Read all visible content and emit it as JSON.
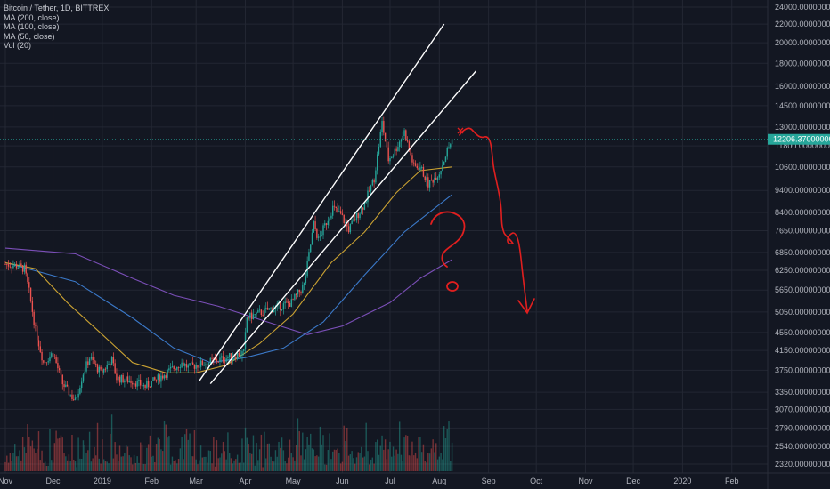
{
  "legend": {
    "symbol": "Bitcoin / Tether, 1D, BITTREX",
    "ma200": "MA (200, close)",
    "ma100": "MA (100, close)",
    "ma50": "MA (50, close)",
    "vol": "Vol (20)"
  },
  "current_price": "12206.37000000",
  "colors": {
    "background": "#131722",
    "up": "#26a69a",
    "down": "#ef5350",
    "ma200": "#7b4fb8",
    "ma100": "#3b79c9",
    "ma50": "#c9a132",
    "trendline": "#ffffff",
    "annotation": "#e01f1f",
    "grid": "#232733"
  },
  "chart_data": {
    "type": "candlestick",
    "y_axis": {
      "scale": "log",
      "ticks": [
        "24000.00000000",
        "22000.00000000",
        "20000.00000000",
        "18000.00000000",
        "16000.00000000",
        "14500.00000000",
        "13000.00000000",
        "11800.00000000",
        "10600.00000000",
        "9400.00000000",
        "8400.00000000",
        "7650.00000000",
        "6850.00000000",
        "6250.00000000",
        "5650.00000000",
        "5050.00000000",
        "4550.00000000",
        "4150.00000000",
        "3750.00000000",
        "3350.00000000",
        "3070.00000000",
        "2790.00000000",
        "2540.00000000",
        "2320.00000000"
      ]
    },
    "x_axis": {
      "ticks": [
        "Nov",
        "Dec",
        "2019",
        "Feb",
        "Mar",
        "Apr",
        "May",
        "Jun",
        "Jul",
        "Aug",
        "Sep",
        "Oct",
        "Nov",
        "Dec",
        "2020",
        "Feb"
      ]
    },
    "price_path": [
      [
        "2018-11-01",
        6450
      ],
      [
        "2018-11-08",
        6400
      ],
      [
        "2018-11-13",
        6300
      ],
      [
        "2018-11-16",
        5600
      ],
      [
        "2018-11-20",
        4600
      ],
      [
        "2018-11-25",
        3900
      ],
      [
        "2018-12-01",
        4100
      ],
      [
        "2018-12-07",
        3500
      ],
      [
        "2018-12-15",
        3200
      ],
      [
        "2018-12-20",
        3700
      ],
      [
        "2018-12-24",
        4000
      ],
      [
        "2018-12-31",
        3700
      ],
      [
        "2019-01-07",
        3950
      ],
      [
        "2019-01-10",
        3600
      ],
      [
        "2019-01-20",
        3550
      ],
      [
        "2019-01-28",
        3450
      ],
      [
        "2019-02-08",
        3650
      ],
      [
        "2019-02-20",
        3900
      ],
      [
        "2019-02-24",
        3800
      ],
      [
        "2019-03-01",
        3850
      ],
      [
        "2019-03-15",
        3950
      ],
      [
        "2019-03-31",
        4100
      ],
      [
        "2019-04-02",
        4900
      ],
      [
        "2019-04-15",
        5100
      ],
      [
        "2019-04-30",
        5300
      ],
      [
        "2019-05-08",
        5800
      ],
      [
        "2019-05-14",
        7900
      ],
      [
        "2019-05-17",
        7300
      ],
      [
        "2019-05-26",
        8600
      ],
      [
        "2019-05-31",
        8300
      ],
      [
        "2019-06-05",
        7700
      ],
      [
        "2019-06-15",
        8800
      ],
      [
        "2019-06-21",
        10000
      ],
      [
        "2019-06-26",
        13300
      ],
      [
        "2019-06-30",
        11000
      ],
      [
        "2019-07-04",
        11500
      ],
      [
        "2019-07-10",
        12700
      ],
      [
        "2019-07-16",
        10600
      ],
      [
        "2019-07-20",
        10600
      ],
      [
        "2019-07-25",
        9700
      ],
      [
        "2019-08-01",
        10300
      ],
      [
        "2019-08-06",
        11500
      ],
      [
        "2019-08-09",
        12200
      ]
    ],
    "ma50": [
      [
        "2018-11-01",
        6500
      ],
      [
        "2018-11-20",
        6300
      ],
      [
        "2018-12-10",
        5300
      ],
      [
        "2019-01-01",
        4500
      ],
      [
        "2019-01-20",
        3900
      ],
      [
        "2019-02-10",
        3700
      ],
      [
        "2019-03-01",
        3700
      ],
      [
        "2019-03-20",
        3850
      ],
      [
        "2019-04-10",
        4300
      ],
      [
        "2019-05-01",
        5000
      ],
      [
        "2019-05-25",
        6500
      ],
      [
        "2019-06-15",
        7600
      ],
      [
        "2019-07-05",
        9300
      ],
      [
        "2019-07-20",
        10400
      ],
      [
        "2019-08-09",
        10600
      ]
    ],
    "ma100": [
      [
        "2018-11-01",
        6500
      ],
      [
        "2018-12-15",
        5900
      ],
      [
        "2019-01-20",
        4900
      ],
      [
        "2019-02-15",
        4200
      ],
      [
        "2019-03-10",
        3900
      ],
      [
        "2019-04-01",
        4000
      ],
      [
        "2019-04-25",
        4200
      ],
      [
        "2019-05-20",
        4800
      ],
      [
        "2019-06-15",
        6100
      ],
      [
        "2019-07-10",
        7600
      ],
      [
        "2019-08-09",
        9200
      ]
    ],
    "ma200": [
      [
        "2018-11-01",
        7000
      ],
      [
        "2018-12-15",
        6800
      ],
      [
        "2019-01-20",
        6000
      ],
      [
        "2019-02-15",
        5500
      ],
      [
        "2019-03-15",
        5200
      ],
      [
        "2019-04-15",
        4800
      ],
      [
        "2019-05-10",
        4500
      ],
      [
        "2019-06-01",
        4700
      ],
      [
        "2019-07-01",
        5300
      ],
      [
        "2019-07-20",
        6000
      ],
      [
        "2019-08-09",
        6600
      ]
    ],
    "trendlines": [
      {
        "from": [
          "2019-03-03",
          3550
        ],
        "to": [
          "2019-08-04",
          22000
        ]
      },
      {
        "from": [
          "2019-03-10",
          3500
        ],
        "to": [
          "2019-08-24",
          17300
        ]
      }
    ],
    "annotations": {
      "drawing": "red freehand arrow pointing down to about 5000, with a red question mark near 7500"
    }
  }
}
